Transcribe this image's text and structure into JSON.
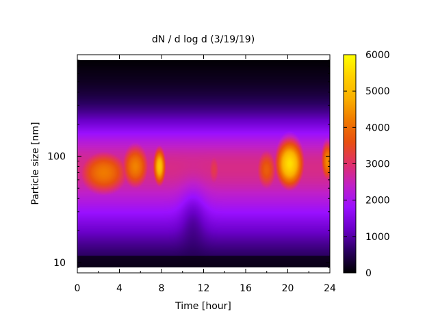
{
  "chart_data": {
    "type": "heatmap",
    "title": "dN / d log d (3/19/19)",
    "xlabel": "Time [hour]",
    "ylabel": "Particle size [nm]",
    "x_range": [
      0,
      24
    ],
    "x_ticks": [
      0,
      4,
      8,
      12,
      16,
      20,
      24
    ],
    "x_tick_labels": [
      "0",
      "4",
      "8",
      "12",
      "16",
      "20",
      "24"
    ],
    "y_scale": "log",
    "y_range": [
      8,
      900
    ],
    "y_ticks": [
      10,
      100
    ],
    "y_tick_labels": [
      "10",
      "100"
    ],
    "colorbar": {
      "range": [
        0,
        6000
      ],
      "ticks": [
        0,
        1000,
        2000,
        3000,
        4000,
        5000,
        6000
      ],
      "tick_labels": [
        "0",
        "1000",
        "2000",
        "3000",
        "4000",
        "5000",
        "6000"
      ],
      "palette": [
        "#000000",
        "#2a0060",
        "#6a00c8",
        "#9a10ff",
        "#c020c8",
        "#e0306a",
        "#e85010",
        "#f07a00",
        "#fab000",
        "#ffd000",
        "#ffff00"
      ]
    },
    "hotspots": [
      {
        "time_h": 2.5,
        "size_nm": 70,
        "value": 4200
      },
      {
        "time_h": 5.5,
        "size_nm": 80,
        "value": 4300
      },
      {
        "time_h": 7.8,
        "size_nm": 80,
        "value": 5200
      },
      {
        "time_h": 13.0,
        "size_nm": 75,
        "value": 3200
      },
      {
        "time_h": 18.0,
        "size_nm": 75,
        "value": 3800
      },
      {
        "time_h": 20.2,
        "size_nm": 85,
        "value": 5600
      },
      {
        "time_h": 23.8,
        "size_nm": 90,
        "value": 4400
      }
    ],
    "grid": false,
    "legend": "colorbar-right"
  }
}
